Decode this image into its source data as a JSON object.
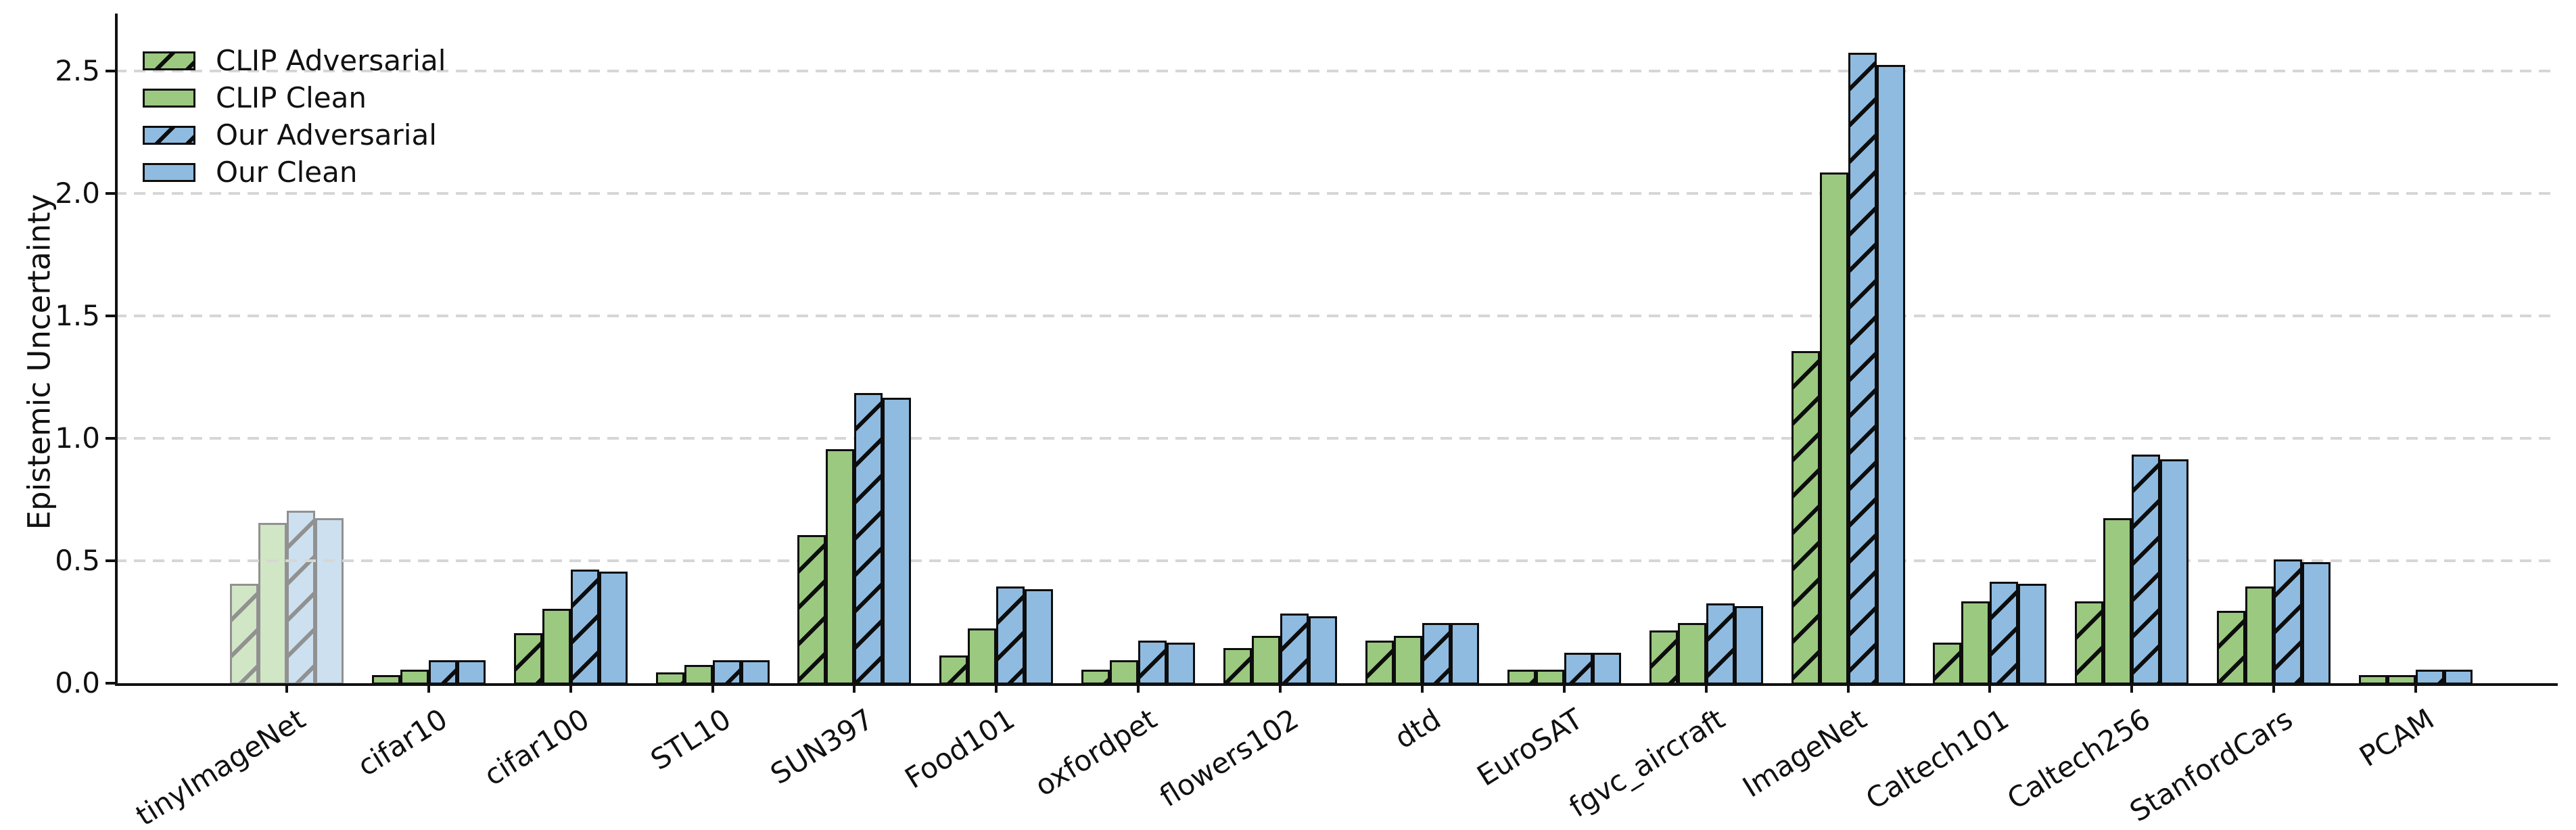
{
  "chart_data": {
    "type": "bar",
    "title": "",
    "xlabel": "",
    "ylabel": "Epistemic Uncertainty",
    "ylim": [
      0,
      2.73
    ],
    "yticks": [
      0.0,
      0.5,
      1.0,
      1.5,
      2.0,
      2.5
    ],
    "grid": "y-dashed",
    "legend_position": "upper-left",
    "categories": [
      "tinyImageNet",
      "cifar10",
      "cifar100",
      "STL10",
      "SUN397",
      "Food101",
      "oxfordpet",
      "flowers102",
      "dtd",
      "EuroSAT",
      "fgvc_aircraft",
      "ImageNet",
      "Caltech101",
      "Caltech256",
      "StanfordCars",
      "PCAM"
    ],
    "series": [
      {
        "name": "CLIP Adversarial",
        "color": "#9bc97f",
        "hatch": true,
        "values": [
          0.41,
          0.04,
          0.21,
          0.05,
          0.61,
          0.12,
          0.06,
          0.15,
          0.18,
          0.06,
          0.22,
          1.36,
          0.17,
          0.34,
          0.3,
          0.04
        ]
      },
      {
        "name": "CLIP Clean",
        "color": "#9bc97f",
        "hatch": false,
        "values": [
          0.66,
          0.06,
          0.31,
          0.08,
          0.96,
          0.23,
          0.1,
          0.2,
          0.2,
          0.06,
          0.25,
          2.09,
          0.34,
          0.68,
          0.4,
          0.04
        ]
      },
      {
        "name": "Our Adversarial",
        "color": "#8fbbe0",
        "hatch": true,
        "values": [
          0.71,
          0.1,
          0.47,
          0.1,
          1.19,
          0.4,
          0.18,
          0.29,
          0.25,
          0.13,
          0.33,
          2.58,
          0.42,
          0.94,
          0.51,
          0.06
        ]
      },
      {
        "name": "Our Clean",
        "color": "#8fbbe0",
        "hatch": false,
        "values": [
          0.68,
          0.1,
          0.46,
          0.1,
          1.17,
          0.39,
          0.17,
          0.28,
          0.25,
          0.13,
          0.32,
          2.53,
          0.41,
          0.92,
          0.5,
          0.06
        ]
      }
    ],
    "faded_category": "tinyImageNet",
    "faded_alpha": 0.45,
    "colors": {
      "axis": "#111111",
      "gridline": "#d6d6d6",
      "bar_edge": "#0d0d0d"
    }
  }
}
